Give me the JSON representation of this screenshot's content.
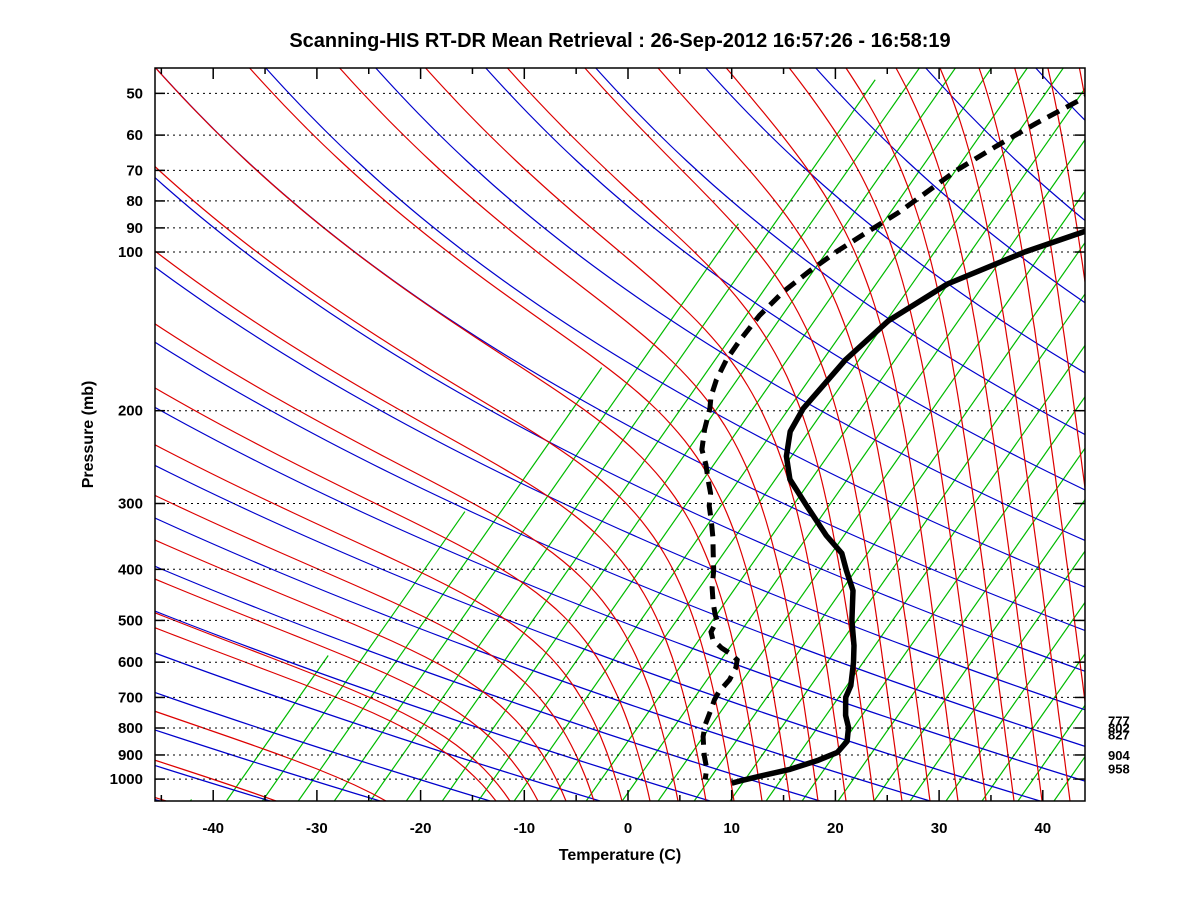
{
  "title": "Scanning-HIS RT-DR Mean Retrieval : 26-Sep-2012 16:57:26 - 16:58:19",
  "axes": {
    "x": {
      "label": "Temperature (C)",
      "ticks": [
        -40,
        -30,
        -20,
        -10,
        0,
        10,
        20,
        30,
        40
      ],
      "minor_step": 5,
      "range": [
        -45,
        45
      ]
    },
    "y": {
      "label": "Pressure (mb)",
      "ticks": [
        50,
        60,
        70,
        80,
        90,
        100,
        200,
        300,
        400,
        500,
        600,
        700,
        800,
        900,
        1000
      ],
      "range": [
        45,
        1050
      ],
      "scale": "log"
    }
  },
  "right_annotations": {
    "cluster_upper": [
      "777",
      "802",
      "827"
    ],
    "cluster_lower": [
      "904",
      "958"
    ],
    "pressures": [
      777,
      802,
      827,
      904,
      958
    ]
  },
  "colors": {
    "isotherm_green": "#00bb00",
    "dry_adiabat_blue": "#0000cc",
    "moist_adiabat_red": "#dd0000",
    "grid_dotted": "#000000",
    "profile_black": "#000000",
    "frame": "#000000",
    "background": "#ffffff"
  },
  "legend_semantics": {
    "solid_black": "temperature profile",
    "dashed_black": "dewpoint profile",
    "green": "isotherms (skewed)",
    "blue": "dry adiabats",
    "red": "moist adiabats"
  },
  "chart_data": {
    "type": "line",
    "title": "Scanning-HIS RT-DR Mean Retrieval : 26-Sep-2012 16:57:26 - 16:58:19",
    "xlabel": "Temperature (C)",
    "ylabel": "Pressure (mb)",
    "xlim": [
      -45,
      45
    ],
    "ylim_pressure_mb": [
      45,
      1050
    ],
    "note": "skewed x-coordinate: value is position along bottom axis in C units",
    "series": [
      {
        "name": "temperature_solid",
        "points": [
          [
            45,
            30.8
          ],
          [
            50,
            27.4
          ],
          [
            59,
            22.2
          ],
          [
            69,
            17.2
          ],
          [
            79,
            12.3
          ],
          [
            89,
            6.9
          ],
          [
            100,
            1.2
          ],
          [
            115,
            -4.1
          ],
          [
            135,
            -7.3
          ],
          [
            160,
            -8.8
          ],
          [
            198,
            -9.6
          ],
          [
            219,
            -9.3
          ],
          [
            244,
            -8.0
          ],
          [
            270,
            -6.1
          ],
          [
            303,
            -2.7
          ],
          [
            345,
            1.2
          ],
          [
            373,
            3.9
          ],
          [
            402,
            5.5
          ],
          [
            439,
            7.5
          ],
          [
            500,
            9.4
          ],
          [
            558,
            11.3
          ],
          [
            601,
            12.4
          ],
          [
            665,
            13.7
          ],
          [
            700,
            14.0
          ],
          [
            757,
            15.2
          ],
          [
            798,
            16.3
          ],
          [
            848,
            17.1
          ],
          [
            890,
            16.9
          ],
          [
            921,
            15.6
          ],
          [
            958,
            13.5
          ],
          [
            988,
            11.0
          ],
          [
            1009,
            9.4
          ],
          [
            1018,
            8.8
          ]
        ]
      },
      {
        "name": "dewpoint_dashed",
        "points": [
          [
            45,
            -0.8
          ],
          [
            50,
            -3.0
          ],
          [
            57,
            -6.4
          ],
          [
            63,
            -8.7
          ],
          [
            70,
            -10.9
          ],
          [
            77,
            -12.3
          ],
          [
            84,
            -13.6
          ],
          [
            91,
            -15.2
          ],
          [
            100,
            -17.0
          ],
          [
            109,
            -18.3
          ],
          [
            119,
            -19.4
          ],
          [
            132,
            -20.1
          ],
          [
            147,
            -20.3
          ],
          [
            160,
            -20.3
          ],
          [
            175,
            -19.9
          ],
          [
            188,
            -19.3
          ],
          [
            198,
            -18.6
          ],
          [
            217,
            -17.7
          ],
          [
            237,
            -16.6
          ],
          [
            253,
            -15.2
          ],
          [
            270,
            -14.0
          ],
          [
            287,
            -12.8
          ],
          [
            303,
            -12.1
          ],
          [
            325,
            -10.8
          ],
          [
            348,
            -9.6
          ],
          [
            373,
            -8.5
          ],
          [
            402,
            -7.3
          ],
          [
            433,
            -6.3
          ],
          [
            462,
            -5.2
          ],
          [
            487,
            -4.2
          ],
          [
            500,
            -3.6
          ],
          [
            526,
            -3.4
          ],
          [
            544,
            -2.7
          ],
          [
            564,
            -1.3
          ],
          [
            579,
            0.0
          ],
          [
            594,
            1.0
          ],
          [
            615,
            1.4
          ],
          [
            648,
            1.6
          ],
          [
            683,
            1.4
          ],
          [
            707,
            1.5
          ],
          [
            745,
            1.9
          ],
          [
            789,
            2.3
          ],
          [
            831,
            2.9
          ],
          [
            872,
            3.7
          ],
          [
            903,
            4.3
          ],
          [
            931,
            4.9
          ],
          [
            955,
            5.4
          ],
          [
            1002,
            6.0
          ]
        ]
      }
    ],
    "background_lines": {
      "green_isotherms": {
        "t_start_c": -42.2,
        "t_step_c": 3.47,
        "count": 25
      },
      "blue_dry_adiabats": {
        "seed_x_start": 160,
        "seed_step": 110,
        "seed_count": 23
      },
      "red_moist_adiabats": {
        "hug_offsets": [
          166,
          276,
          386,
          496
        ],
        "warm_start": 510,
        "warm_step": 28,
        "warm_end": 1440
      }
    },
    "pressure_gridlines_mb": [
      50,
      60,
      70,
      80,
      90,
      100,
      200,
      300,
      400,
      500,
      600,
      700,
      800,
      900,
      1000
    ],
    "grid": true,
    "legend_position": "none"
  }
}
